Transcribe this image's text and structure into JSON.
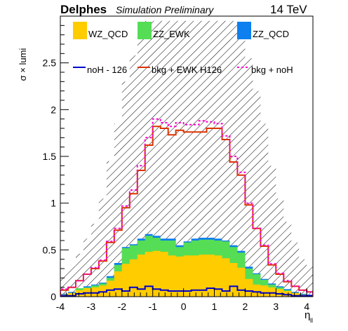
{
  "header": {
    "experiment": "Delphes",
    "label": "Simulation Preliminary",
    "energy": "14 TeV"
  },
  "chart_data": {
    "type": "histogram",
    "xlabel": "η",
    "xlabel_sub": "ll",
    "ylabel": "σ × lumi",
    "xlim": [
      -4,
      4.2
    ],
    "ylim": [
      0,
      3.0
    ],
    "x_ticks": [
      -4,
      -3,
      -2,
      -1,
      0,
      1,
      2,
      3,
      4
    ],
    "y_ticks": [
      0,
      0.5,
      1,
      1.5,
      2,
      2.5
    ],
    "y_tick_labels": [
      "0",
      "0.5",
      "1",
      "1.5",
      "2",
      "2.5"
    ],
    "bin_edges": [
      -4.0,
      -3.75,
      -3.5,
      -3.25,
      -3.0,
      -2.75,
      -2.5,
      -2.25,
      -2.0,
      -1.75,
      -1.5,
      -1.25,
      -1.0,
      -0.75,
      -0.5,
      -0.25,
      0.0,
      0.25,
      0.5,
      0.75,
      1.0,
      1.25,
      1.5,
      1.75,
      2.0,
      2.25,
      2.5,
      2.75,
      3.0,
      3.25,
      3.5,
      3.75,
      4.0,
      4.2
    ],
    "series": [
      {
        "name": "WZ_QCD",
        "kind": "filled",
        "color": "#ffcc00",
        "values": [
          0.02,
          0.04,
          0.07,
          0.09,
          0.1,
          0.12,
          0.17,
          0.27,
          0.35,
          0.4,
          0.45,
          0.48,
          0.49,
          0.48,
          0.44,
          0.43,
          0.44,
          0.44,
          0.45,
          0.45,
          0.44,
          0.41,
          0.36,
          0.31,
          0.19,
          0.13,
          0.12,
          0.1,
          0.08,
          0.06,
          0.04,
          0.02,
          0.01
        ]
      },
      {
        "name": "ZZ_EWK",
        "kind": "filled",
        "color": "#55dd55",
        "values": [
          0.02,
          0.04,
          0.09,
          0.1,
          0.12,
          0.14,
          0.2,
          0.34,
          0.52,
          0.55,
          0.6,
          0.65,
          0.63,
          0.6,
          0.6,
          0.53,
          0.58,
          0.6,
          0.61,
          0.61,
          0.6,
          0.59,
          0.53,
          0.47,
          0.3,
          0.24,
          0.18,
          0.13,
          0.1,
          0.07,
          0.04,
          0.02,
          0.01
        ]
      },
      {
        "name": "ZZ_QCD",
        "kind": "filled",
        "color": "#0d7fee",
        "values": [
          0.03,
          0.05,
          0.09,
          0.11,
          0.13,
          0.15,
          0.22,
          0.36,
          0.53,
          0.56,
          0.62,
          0.67,
          0.65,
          0.62,
          0.62,
          0.55,
          0.59,
          0.62,
          0.63,
          0.63,
          0.62,
          0.6,
          0.55,
          0.49,
          0.32,
          0.25,
          0.19,
          0.14,
          0.11,
          0.08,
          0.05,
          0.03,
          0.02
        ]
      },
      {
        "name": "noH - 126",
        "kind": "line",
        "color": "#0000cc",
        "values": [
          0.01,
          0.01,
          0.03,
          0.04,
          0.04,
          0.05,
          0.07,
          0.08,
          0.06,
          0.1,
          0.08,
          0.11,
          0.08,
          0.07,
          0.06,
          0.06,
          0.06,
          0.07,
          0.07,
          0.09,
          0.08,
          0.06,
          0.11,
          0.07,
          0.06,
          0.05,
          0.04,
          0.04,
          0.03,
          0.02,
          0.01,
          0.01,
          0.01
        ]
      },
      {
        "name": "bkg + EWK H126",
        "kind": "line",
        "color": "#dd3300",
        "values": [
          0.07,
          0.1,
          0.17,
          0.24,
          0.3,
          0.38,
          0.58,
          0.71,
          0.95,
          1.1,
          1.35,
          1.62,
          1.82,
          1.8,
          1.73,
          1.78,
          1.76,
          1.76,
          1.76,
          1.8,
          1.8,
          1.68,
          1.44,
          1.3,
          0.98,
          0.73,
          0.54,
          0.34,
          0.24,
          0.16,
          0.11,
          0.07,
          0.05
        ]
      },
      {
        "name": "bkg + noH",
        "kind": "dashed",
        "color": "#ff00cc",
        "values": [
          0.08,
          0.1,
          0.17,
          0.24,
          0.31,
          0.39,
          0.59,
          0.73,
          0.97,
          1.14,
          1.4,
          1.7,
          1.9,
          1.86,
          1.82,
          1.86,
          1.84,
          1.84,
          1.88,
          1.87,
          1.85,
          1.72,
          1.5,
          1.33,
          1.0,
          0.73,
          0.55,
          0.35,
          0.25,
          0.17,
          0.11,
          0.07,
          0.05
        ]
      }
    ],
    "uncertainty": {
      "style": "hatched",
      "upper": [
        0.25,
        0.33,
        0.46,
        0.62,
        0.78,
        1.05,
        1.45,
        1.85,
        2.3,
        2.58,
        2.85,
        2.95,
        2.95,
        2.95,
        2.95,
        2.95,
        2.95,
        2.95,
        2.95,
        2.95,
        2.95,
        2.95,
        2.95,
        2.8,
        2.55,
        2.2,
        1.85,
        1.4,
        1.05,
        0.8,
        0.58,
        0.4,
        0.32
      ],
      "lower": [
        0,
        0,
        0,
        0,
        0,
        0,
        0,
        0,
        0,
        0,
        0,
        0,
        0,
        0,
        0,
        0,
        0,
        0,
        0,
        0,
        0,
        0,
        0,
        0,
        0,
        0,
        0,
        0,
        0,
        0,
        0,
        0,
        0
      ]
    },
    "legend": {
      "placement": "top",
      "rows": [
        [
          "WZ_QCD",
          "ZZ_EWK",
          "ZZ_QCD"
        ],
        [
          "noH - 126",
          "bkg + EWK H126",
          "bkg + noH"
        ]
      ]
    },
    "grid": false
  }
}
